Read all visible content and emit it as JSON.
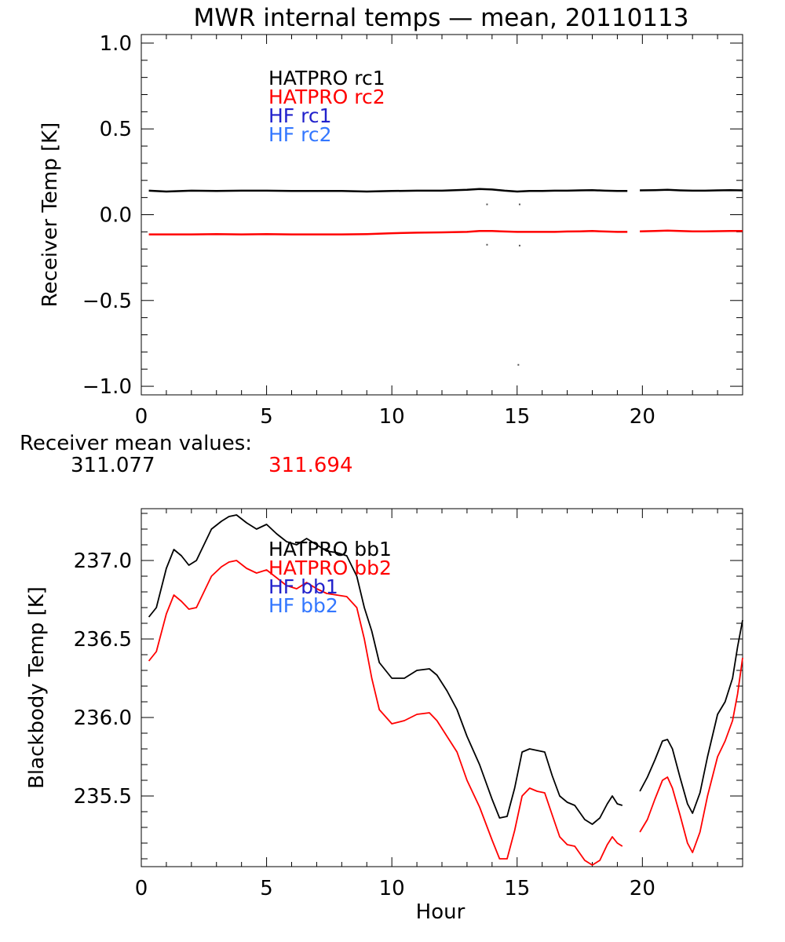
{
  "title": "MWR internal temps — mean, 20110113",
  "receiver_mean": {
    "label": "Receiver mean values:",
    "values": [
      {
        "text": "311.077",
        "color": "#000000"
      },
      {
        "text": "311.694",
        "color": "#ff0000"
      }
    ]
  },
  "chart_data": [
    {
      "type": "line",
      "ylabel": "Receiver Temp [K]",
      "xlabel": "",
      "xlim": [
        0,
        24
      ],
      "ylim": [
        -1.05,
        1.05
      ],
      "xticks": [
        0,
        5,
        10,
        15,
        20
      ],
      "yticks": [
        -1.0,
        -0.5,
        0.0,
        0.5,
        1.0
      ],
      "ytick_labels": [
        "−1.0",
        "−0.5",
        "0.0",
        "0.5",
        "1.0"
      ],
      "grid": false,
      "legend_position": "top-left",
      "series": [
        {
          "name": "HATPRO rc1",
          "color": "#000000",
          "segments": [
            {
              "x": [
                0.3,
                1,
                2,
                3,
                4,
                5,
                6,
                7,
                8,
                9,
                10,
                11,
                12,
                13,
                13.5,
                14,
                14.5,
                15,
                15.5,
                16,
                16.5,
                17,
                17.5,
                18,
                18.5,
                19,
                19.4
              ],
              "y": [
                0.14,
                0.135,
                0.14,
                0.138,
                0.14,
                0.14,
                0.138,
                0.138,
                0.138,
                0.135,
                0.138,
                0.14,
                0.14,
                0.145,
                0.15,
                0.147,
                0.14,
                0.135,
                0.138,
                0.138,
                0.14,
                0.14,
                0.142,
                0.143,
                0.14,
                0.138,
                0.138
              ]
            },
            {
              "x": [
                19.9,
                20.5,
                21,
                21.5,
                22,
                22.5,
                23,
                23.5,
                24
              ],
              "y": [
                0.142,
                0.143,
                0.145,
                0.142,
                0.14,
                0.14,
                0.142,
                0.143,
                0.142
              ]
            }
          ]
        },
        {
          "name": "HATPRO rc2",
          "color": "#ff0000",
          "segments": [
            {
              "x": [
                0.3,
                1,
                2,
                3,
                4,
                5,
                6,
                7,
                8,
                9,
                10,
                11,
                12,
                13,
                13.5,
                14,
                14.5,
                15,
                15.5,
                16,
                16.5,
                17,
                17.5,
                18,
                18.5,
                19,
                19.4
              ],
              "y": [
                -0.115,
                -0.115,
                -0.115,
                -0.113,
                -0.115,
                -0.113,
                -0.115,
                -0.115,
                -0.115,
                -0.113,
                -0.108,
                -0.105,
                -0.103,
                -0.1,
                -0.095,
                -0.095,
                -0.098,
                -0.1,
                -0.1,
                -0.1,
                -0.1,
                -0.098,
                -0.097,
                -0.095,
                -0.098,
                -0.1,
                -0.1
              ]
            },
            {
              "x": [
                19.9,
                20.5,
                21,
                21.5,
                22,
                22.5,
                23,
                23.5,
                24
              ],
              "y": [
                -0.097,
                -0.095,
                -0.093,
                -0.095,
                -0.097,
                -0.097,
                -0.096,
                -0.095,
                -0.095
              ]
            }
          ]
        },
        {
          "name": "HF rc1",
          "color": "#2222cc",
          "segments": []
        },
        {
          "name": "HF rc2",
          "color": "#3377ff",
          "segments": []
        }
      ],
      "outliers": [
        {
          "x": 13.8,
          "y": 0.06
        },
        {
          "x": 15.1,
          "y": 0.06
        },
        {
          "x": 13.8,
          "y": -0.175
        },
        {
          "x": 15.1,
          "y": -0.18
        },
        {
          "x": 15.05,
          "y": -0.875
        }
      ]
    },
    {
      "type": "line",
      "ylabel": "Blackbody Temp [K]",
      "xlabel": "Hour",
      "xlim": [
        0,
        24
      ],
      "ylim": [
        235.05,
        237.33
      ],
      "xticks": [
        0,
        5,
        10,
        15,
        20
      ],
      "yticks": [
        235.5,
        236.0,
        236.5,
        237.0
      ],
      "ytick_labels": [
        "235.5",
        "236.0",
        "236.5",
        "237.0"
      ],
      "grid": false,
      "legend_position": "top-left",
      "series": [
        {
          "name": "HATPRO bb1",
          "color": "#000000",
          "segments": [
            {
              "x": [
                0.3,
                0.6,
                1.0,
                1.3,
                1.6,
                1.9,
                2.2,
                2.5,
                2.8,
                3.2,
                3.5,
                3.8,
                4.2,
                4.6,
                5.0,
                5.4,
                5.8,
                6.2,
                6.6,
                7.0,
                7.4,
                7.8,
                8.2,
                8.6,
                8.9,
                9.2,
                9.5,
                10.0,
                10.5,
                11.0,
                11.5,
                11.8,
                12.2,
                12.6,
                13.0,
                13.5,
                14.0,
                14.3,
                14.6,
                14.9,
                15.2,
                15.5,
                15.8,
                16.1,
                16.4,
                16.7,
                17.0,
                17.3,
                17.7,
                18.0,
                18.3,
                18.6,
                18.8,
                19.0,
                19.2
              ],
              "y": [
                236.64,
                236.7,
                236.95,
                237.07,
                237.03,
                236.97,
                237.0,
                237.1,
                237.2,
                237.25,
                237.28,
                237.29,
                237.24,
                237.2,
                237.23,
                237.17,
                237.12,
                237.1,
                237.14,
                237.1,
                237.06,
                237.05,
                237.03,
                236.9,
                236.7,
                236.55,
                236.35,
                236.25,
                236.25,
                236.3,
                236.31,
                236.27,
                236.17,
                236.05,
                235.88,
                235.7,
                235.48,
                235.36,
                235.37,
                235.55,
                235.78,
                235.8,
                235.79,
                235.78,
                235.63,
                235.5,
                235.46,
                235.44,
                235.35,
                235.32,
                235.36,
                235.45,
                235.5,
                235.45,
                235.44
              ]
            },
            {
              "x": [
                19.9,
                20.2,
                20.5,
                20.8,
                21.0,
                21.2,
                21.5,
                21.8,
                22.0,
                22.3,
                22.6,
                23.0,
                23.3,
                23.6,
                23.8,
                24.0
              ],
              "y": [
                235.53,
                235.62,
                235.73,
                235.85,
                235.86,
                235.8,
                235.62,
                235.45,
                235.39,
                235.52,
                235.75,
                236.02,
                236.1,
                236.25,
                236.45,
                236.62
              ]
            }
          ]
        },
        {
          "name": "HATPRO bb2",
          "color": "#ff0000",
          "segments": [
            {
              "x": [
                0.3,
                0.6,
                1.0,
                1.3,
                1.6,
                1.9,
                2.2,
                2.5,
                2.8,
                3.2,
                3.5,
                3.8,
                4.2,
                4.6,
                5.0,
                5.4,
                5.8,
                6.2,
                6.6,
                7.0,
                7.4,
                7.8,
                8.2,
                8.6,
                8.9,
                9.2,
                9.5,
                10.0,
                10.5,
                11.0,
                11.5,
                11.8,
                12.2,
                12.6,
                13.0,
                13.5,
                14.0,
                14.3,
                14.6,
                14.9,
                15.2,
                15.5,
                15.8,
                16.1,
                16.4,
                16.7,
                17.0,
                17.3,
                17.7,
                18.0,
                18.3,
                18.6,
                18.8,
                19.0,
                19.2
              ],
              "y": [
                236.36,
                236.42,
                236.66,
                236.78,
                236.74,
                236.69,
                236.7,
                236.8,
                236.9,
                236.96,
                236.99,
                237.0,
                236.95,
                236.92,
                236.94,
                236.89,
                236.84,
                236.82,
                236.86,
                236.82,
                236.79,
                236.78,
                236.77,
                236.7,
                236.5,
                236.25,
                236.05,
                235.96,
                235.98,
                236.02,
                236.03,
                235.98,
                235.88,
                235.78,
                235.6,
                235.43,
                235.22,
                235.1,
                235.1,
                235.28,
                235.5,
                235.55,
                235.53,
                235.52,
                235.38,
                235.24,
                235.19,
                235.18,
                235.09,
                235.06,
                235.09,
                235.19,
                235.24,
                235.2,
                235.18
              ]
            },
            {
              "x": [
                19.9,
                20.2,
                20.5,
                20.8,
                21.0,
                21.2,
                21.5,
                21.8,
                22.0,
                22.3,
                22.6,
                23.0,
                23.3,
                23.6,
                23.8,
                24.0
              ],
              "y": [
                235.27,
                235.35,
                235.48,
                235.6,
                235.62,
                235.55,
                235.38,
                235.2,
                235.14,
                235.27,
                235.5,
                235.75,
                235.85,
                235.98,
                236.15,
                236.38
              ]
            }
          ]
        },
        {
          "name": "HF bb1",
          "color": "#2222cc",
          "segments": []
        },
        {
          "name": "HF bb2",
          "color": "#3377ff",
          "segments": []
        }
      ],
      "outliers": []
    }
  ]
}
